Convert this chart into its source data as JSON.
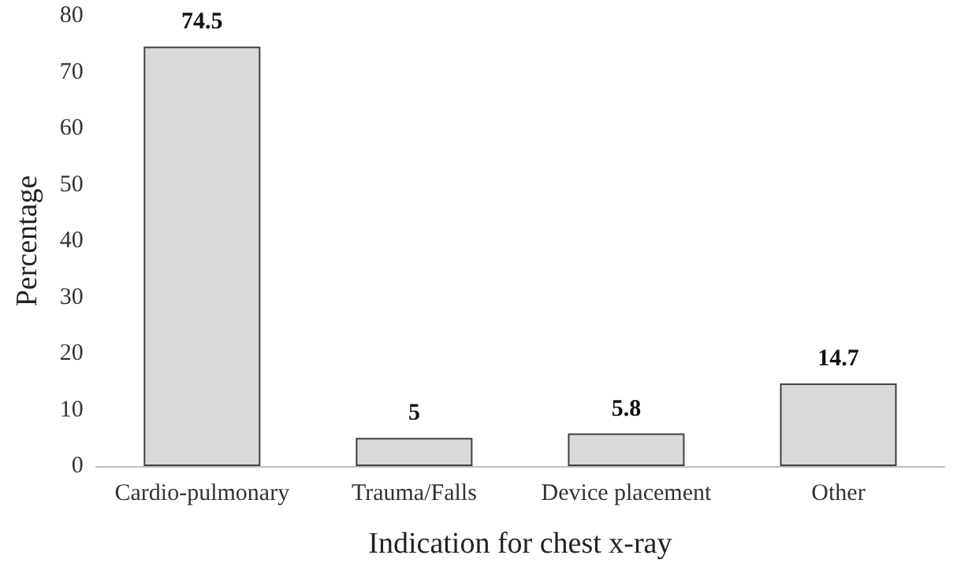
{
  "chart_data": {
    "type": "bar",
    "xlabel": "Indication for chest x-ray",
    "ylabel": "Percentage",
    "categories": [
      "Cardio-pulmonary",
      "Trauma/Falls",
      "Device placement",
      "Other"
    ],
    "values": [
      74.5,
      5,
      5.8,
      14.7
    ],
    "color": "#d9d9d9",
    "ylim": [
      0,
      80
    ],
    "yticks": [
      0,
      10,
      20,
      30,
      40,
      50,
      60,
      70,
      80
    ],
    "grid": false,
    "data_labels": true
  }
}
